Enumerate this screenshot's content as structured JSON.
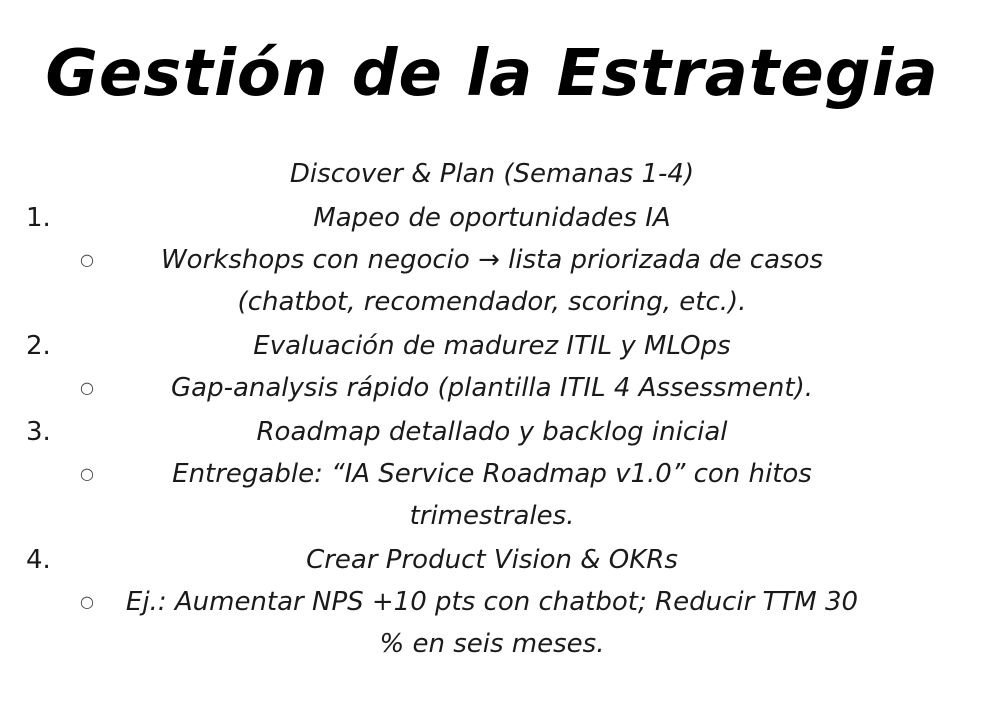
{
  "title": "Gestión de la Estrategia",
  "section_heading": "Discover & Plan (Semanas 1-4)",
  "bullet_glyph": "○",
  "items": [
    {
      "number": "1.",
      "heading": "Mapeo de oportunidades IA",
      "sub_lines": [
        "Workshops con negocio → lista priorizada de casos",
        "(chatbot, recomendador, scoring, etc.)."
      ]
    },
    {
      "number": "2.",
      "heading": "Evaluación de madurez ITIL y MLOps",
      "sub_lines": [
        "Gap-analysis rápido (plantilla ITIL 4 Assessment)."
      ]
    },
    {
      "number": "3.",
      "heading": "Roadmap detallado y backlog inicial",
      "sub_lines": [
        "Entregable: “IA Service Roadmap v1.0” con hitos",
        "trimestrales."
      ]
    },
    {
      "number": "4.",
      "heading": "Crear Product Vision & OKRs",
      "sub_lines": [
        "Ej.: Aumentar NPS +10 pts con chatbot; Reducir TTM 30",
        "% en seis meses."
      ]
    }
  ]
}
